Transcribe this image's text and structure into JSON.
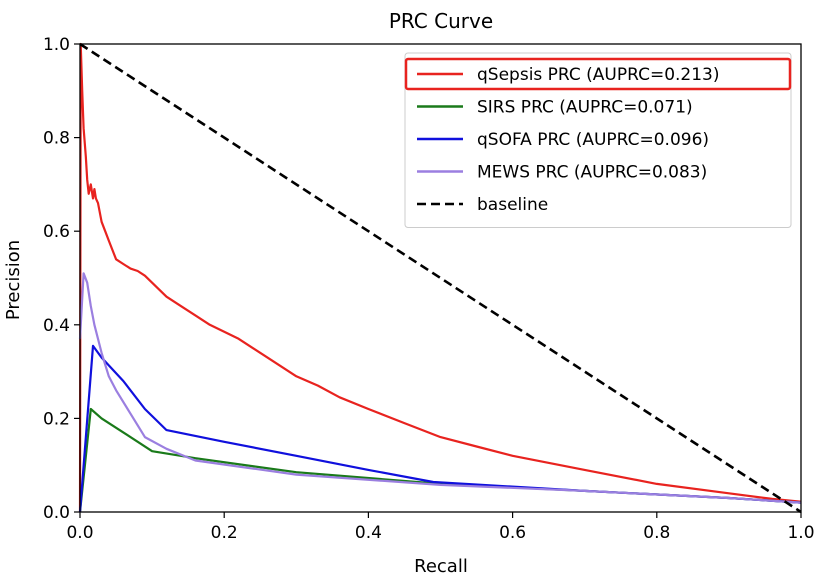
{
  "chart_data": {
    "type": "line",
    "title": "PRC Curve",
    "xlabel": "Recall",
    "ylabel": "Precision",
    "xlim": [
      0.0,
      1.0
    ],
    "ylim": [
      0.0,
      1.0
    ],
    "xticks": [
      "0.0",
      "0.2",
      "0.4",
      "0.6",
      "0.8",
      "1.0"
    ],
    "yticks": [
      "0.0",
      "0.2",
      "0.4",
      "0.6",
      "0.8",
      "1.0"
    ],
    "grid": false,
    "legend_position": "top-right",
    "highlighted_legend_entry": "qSepsis PRC (AUPRC=0.213)",
    "series": [
      {
        "name": "qSepsis PRC (AUPRC=0.213)",
        "color": "#e8231f",
        "dash": "solid",
        "points": [
          [
            0.0,
            0.0
          ],
          [
            0.001,
            1.0
          ],
          [
            0.003,
            0.9
          ],
          [
            0.005,
            0.82
          ],
          [
            0.008,
            0.76
          ],
          [
            0.01,
            0.71
          ],
          [
            0.012,
            0.68
          ],
          [
            0.015,
            0.7
          ],
          [
            0.018,
            0.67
          ],
          [
            0.02,
            0.69
          ],
          [
            0.022,
            0.67
          ],
          [
            0.025,
            0.66
          ],
          [
            0.03,
            0.62
          ],
          [
            0.035,
            0.6
          ],
          [
            0.04,
            0.58
          ],
          [
            0.045,
            0.56
          ],
          [
            0.05,
            0.54
          ],
          [
            0.06,
            0.53
          ],
          [
            0.07,
            0.52
          ],
          [
            0.08,
            0.515
          ],
          [
            0.09,
            0.505
          ],
          [
            0.1,
            0.49
          ],
          [
            0.12,
            0.46
          ],
          [
            0.14,
            0.44
          ],
          [
            0.16,
            0.42
          ],
          [
            0.18,
            0.4
          ],
          [
            0.2,
            0.385
          ],
          [
            0.22,
            0.37
          ],
          [
            0.24,
            0.35
          ],
          [
            0.26,
            0.33
          ],
          [
            0.28,
            0.31
          ],
          [
            0.3,
            0.29
          ],
          [
            0.33,
            0.27
          ],
          [
            0.36,
            0.245
          ],
          [
            0.4,
            0.22
          ],
          [
            0.45,
            0.19
          ],
          [
            0.5,
            0.16
          ],
          [
            0.55,
            0.14
          ],
          [
            0.6,
            0.12
          ],
          [
            0.7,
            0.09
          ],
          [
            0.8,
            0.06
          ],
          [
            0.9,
            0.04
          ],
          [
            0.96,
            0.028
          ],
          [
            1.0,
            0.022
          ]
        ]
      },
      {
        "name": "SIRS PRC (AUPRC=0.071)",
        "color": "#1a7a1a",
        "dash": "solid",
        "points": [
          [
            0.0,
            0.0
          ],
          [
            0.015,
            0.22
          ],
          [
            0.03,
            0.2
          ],
          [
            0.06,
            0.17
          ],
          [
            0.1,
            0.13
          ],
          [
            0.16,
            0.115
          ],
          [
            0.3,
            0.085
          ],
          [
            0.5,
            0.06
          ],
          [
            0.7,
            0.045
          ],
          [
            0.9,
            0.03
          ],
          [
            1.0,
            0.02
          ]
        ]
      },
      {
        "name": "qSOFA PRC (AUPRC=0.096)",
        "color": "#1010dd",
        "dash": "solid",
        "points": [
          [
            0.0,
            0.0
          ],
          [
            0.018,
            0.355
          ],
          [
            0.03,
            0.33
          ],
          [
            0.06,
            0.28
          ],
          [
            0.09,
            0.22
          ],
          [
            0.12,
            0.175
          ],
          [
            0.2,
            0.15
          ],
          [
            0.3,
            0.12
          ],
          [
            0.4,
            0.09
          ],
          [
            0.49,
            0.064
          ],
          [
            0.7,
            0.045
          ],
          [
            0.9,
            0.03
          ],
          [
            1.0,
            0.02
          ]
        ]
      },
      {
        "name": "MEWS PRC (AUPRC=0.083)",
        "color": "#9b7fe0",
        "dash": "solid",
        "points": [
          [
            0.0,
            0.37
          ],
          [
            0.005,
            0.51
          ],
          [
            0.01,
            0.49
          ],
          [
            0.015,
            0.44
          ],
          [
            0.02,
            0.4
          ],
          [
            0.03,
            0.34
          ],
          [
            0.04,
            0.29
          ],
          [
            0.05,
            0.26
          ],
          [
            0.07,
            0.21
          ],
          [
            0.09,
            0.16
          ],
          [
            0.12,
            0.135
          ],
          [
            0.16,
            0.11
          ],
          [
            0.3,
            0.08
          ],
          [
            0.5,
            0.058
          ],
          [
            0.7,
            0.045
          ],
          [
            0.9,
            0.03
          ],
          [
            1.0,
            0.02
          ]
        ]
      },
      {
        "name": "baseline",
        "color": "#000000",
        "dash": "dashed",
        "points": [
          [
            0.0,
            1.0
          ],
          [
            1.0,
            0.0
          ]
        ]
      }
    ]
  }
}
